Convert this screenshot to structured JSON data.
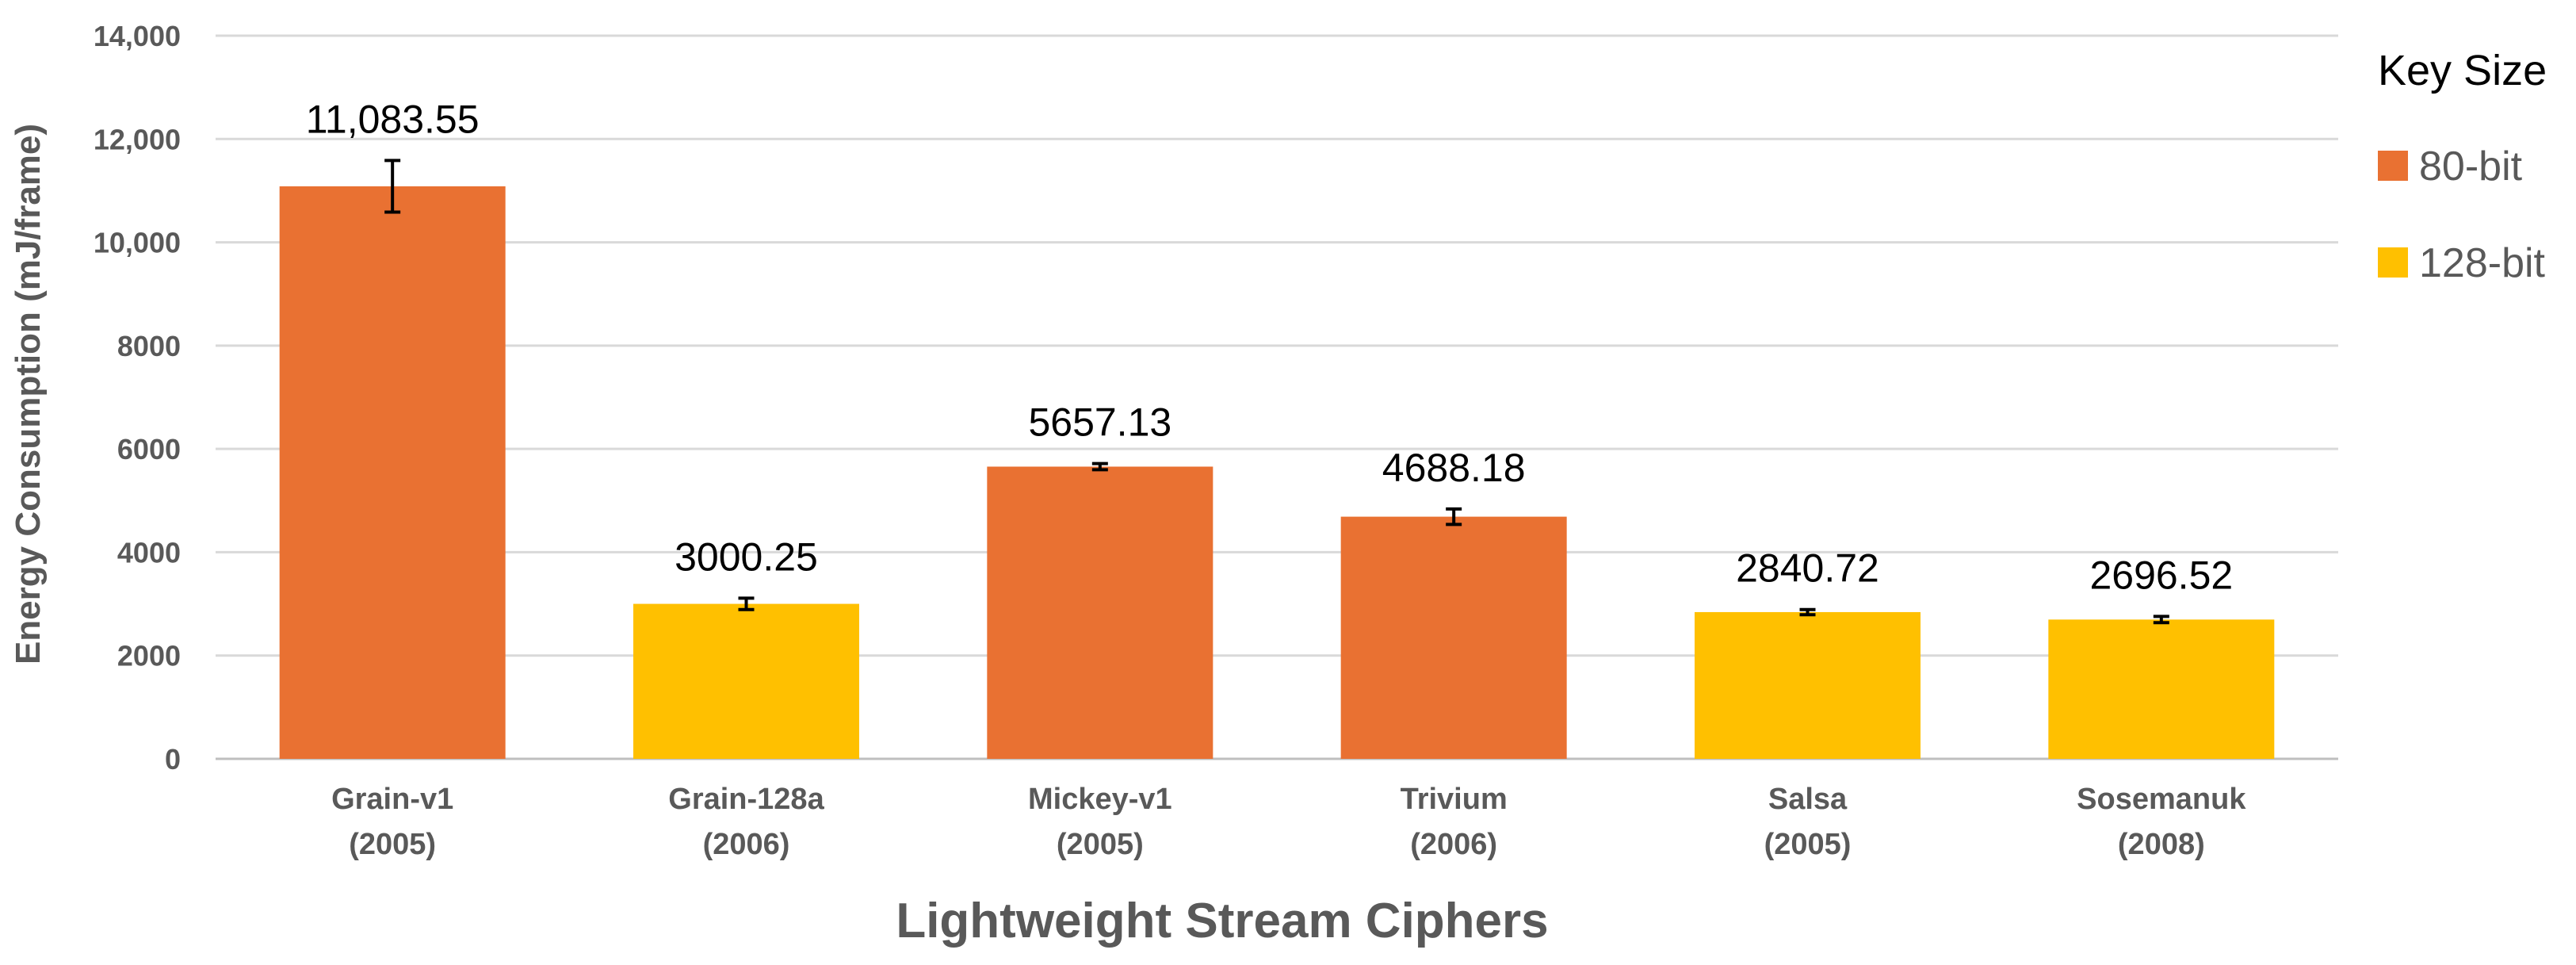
{
  "chart_data": {
    "type": "bar",
    "title": "",
    "xlabel": "Lightweight Stream Ciphers",
    "ylabel": "Energy Consumption  (mJ/frame)",
    "ylim": [
      0,
      14000
    ],
    "yticks": [
      0,
      2000,
      4000,
      6000,
      8000,
      10000,
      12000,
      14000
    ],
    "ytick_labels": [
      "0",
      "2000",
      "4000",
      "6000",
      "8000",
      "10,000",
      "12,000",
      "14,000"
    ],
    "grid": true,
    "categories": [
      {
        "name": "Grain-v1",
        "year": "(2005)",
        "key_size": "80-bit",
        "value": 11083.55,
        "value_label": "11,083.55",
        "error": 500
      },
      {
        "name": "Grain-128a",
        "year": "(2006)",
        "key_size": "128-bit",
        "value": 3000.25,
        "value_label": "3000.25",
        "error": 110
      },
      {
        "name": "Mickey-v1",
        "year": "(2005)",
        "key_size": "80-bit",
        "value": 5657.13,
        "value_label": "5657.13",
        "error": 60
      },
      {
        "name": "Trivium",
        "year": "(2006)",
        "key_size": "80-bit",
        "value": 4688.18,
        "value_label": "4688.18",
        "error": 150
      },
      {
        "name": "Salsa",
        "year": "(2005)",
        "key_size": "128-bit",
        "value": 2840.72,
        "value_label": "2840.72",
        "error": 50
      },
      {
        "name": "Sosemanuk",
        "year": "(2008)",
        "key_size": "128-bit",
        "value": 2696.52,
        "value_label": "2696.52",
        "error": 60
      }
    ],
    "legend": {
      "title": "Key Size",
      "position": "right",
      "items": [
        {
          "label": "80-bit",
          "color": "#E97132"
        },
        {
          "label": "128-bit",
          "color": "#FFC000"
        }
      ]
    }
  }
}
